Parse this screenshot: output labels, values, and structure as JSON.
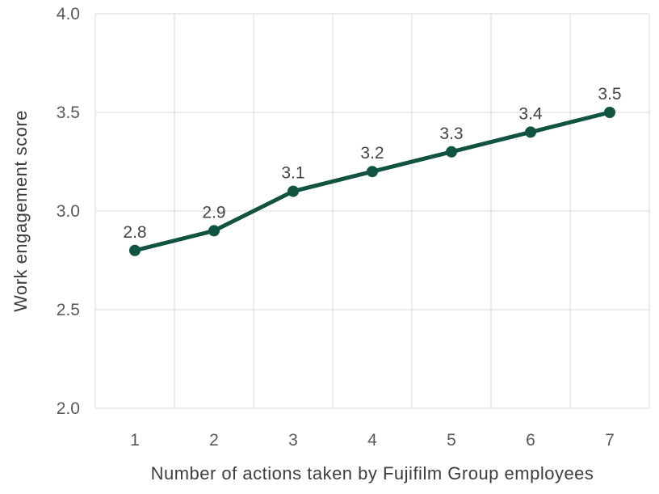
{
  "chart_data": {
    "type": "line",
    "x": [
      1,
      2,
      3,
      4,
      5,
      6,
      7
    ],
    "xtick_labels": [
      "1",
      "2",
      "3",
      "4",
      "5",
      "6",
      "7"
    ],
    "series": [
      {
        "name": "Work engagement score",
        "values": [
          2.8,
          2.9,
          3.1,
          3.2,
          3.3,
          3.4,
          3.5
        ],
        "point_labels": [
          "2.8",
          "2.9",
          "3.1",
          "3.2",
          "3.3",
          "3.4",
          "3.5"
        ]
      }
    ],
    "title": "",
    "xlabel": "Number of actions taken by Fujifilm Group employees",
    "ylabel": "Work engagement score",
    "ylim": [
      2.0,
      4.0
    ],
    "yticks": [
      2.0,
      2.5,
      3.0,
      3.5,
      4.0
    ],
    "ytick_labels": [
      "2.0",
      "2.5",
      "3.0",
      "3.5",
      "4.0"
    ],
    "grid": true,
    "legend_position": "none",
    "marker": "circle"
  },
  "colors": {
    "background": "#ffffff",
    "line": "#0f5340",
    "marker": "#0f5340",
    "gridline": "#d9d9d9",
    "tick_text": "#595959",
    "data_label_text": "#444444",
    "axis_title_text": "#3d3d3d"
  }
}
